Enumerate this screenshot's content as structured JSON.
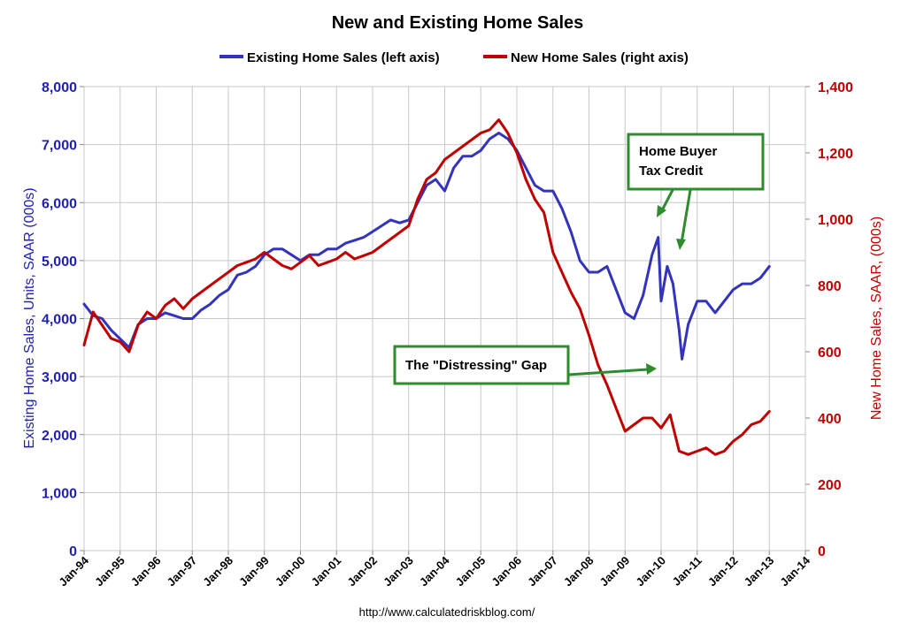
{
  "chart_data": {
    "type": "line",
    "title": "New and Existing Home Sales",
    "ylabel_left": "Existing Home Sales, Units, SAAR (000s)",
    "ylabel_right": "New Home Sales, SAAR, (000s)",
    "source": "http://www.calculatedriskblog.com/",
    "x_tick_labels": [
      "Jan-94",
      "Jan-95",
      "Jan-96",
      "Jan-97",
      "Jan-98",
      "Jan-99",
      "Jan-00",
      "Jan-01",
      "Jan-02",
      "Jan-03",
      "Jan-04",
      "Jan-05",
      "Jan-06",
      "Jan-07",
      "Jan-08",
      "Jan-09",
      "Jan-10",
      "Jan-11",
      "Jan-12",
      "Jan-13",
      "Jan-14"
    ],
    "x_range": [
      1994.0,
      2014.0
    ],
    "ylim_left": [
      0,
      8000
    ],
    "ylim_right": [
      0,
      1400
    ],
    "y_ticks_left": [
      "0",
      "1,000",
      "2,000",
      "3,000",
      "4,000",
      "5,000",
      "6,000",
      "7,000",
      "8,000"
    ],
    "y_ticks_right": [
      "0",
      "200",
      "400",
      "600",
      "800",
      "1,000",
      "1,200",
      "1,400"
    ],
    "grid": true,
    "legend_position": "top",
    "series": [
      {
        "name": "Existing Home Sales (left axis)",
        "axis": "left",
        "color": "#3333bb",
        "x": [
          1994.0,
          1994.25,
          1994.5,
          1994.75,
          1995.0,
          1995.25,
          1995.5,
          1995.75,
          1996.0,
          1996.25,
          1996.5,
          1996.75,
          1997.0,
          1997.25,
          1997.5,
          1997.75,
          1998.0,
          1998.25,
          1998.5,
          1998.75,
          1999.0,
          1999.25,
          1999.5,
          1999.75,
          2000.0,
          2000.25,
          2000.5,
          2000.75,
          2001.0,
          2001.25,
          2001.5,
          2001.75,
          2002.0,
          2002.25,
          2002.5,
          2002.75,
          2003.0,
          2003.25,
          2003.5,
          2003.75,
          2004.0,
          2004.25,
          2004.5,
          2004.75,
          2005.0,
          2005.25,
          2005.5,
          2005.75,
          2006.0,
          2006.25,
          2006.5,
          2006.75,
          2007.0,
          2007.25,
          2007.5,
          2007.75,
          2008.0,
          2008.25,
          2008.5,
          2008.75,
          2009.0,
          2009.25,
          2009.5,
          2009.75,
          2009.92,
          2010.0,
          2010.17,
          2010.33,
          2010.5,
          2010.58,
          2010.75,
          2011.0,
          2011.25,
          2011.5,
          2011.75,
          2012.0,
          2012.25,
          2012.5,
          2012.75,
          2013.0
        ],
        "values": [
          4250,
          4050,
          4000,
          3800,
          3650,
          3500,
          3900,
          4000,
          4000,
          4100,
          4050,
          4000,
          4000,
          4150,
          4250,
          4400,
          4500,
          4750,
          4800,
          4900,
          5100,
          5200,
          5200,
          5100,
          5000,
          5100,
          5100,
          5200,
          5200,
          5300,
          5350,
          5400,
          5500,
          5600,
          5700,
          5650,
          5700,
          6000,
          6300,
          6400,
          6200,
          6600,
          6800,
          6800,
          6900,
          7100,
          7200,
          7100,
          6900,
          6600,
          6300,
          6200,
          6200,
          5900,
          5500,
          5000,
          4800,
          4800,
          4900,
          4500,
          4100,
          4000,
          4400,
          5100,
          5400,
          4300,
          4900,
          4600,
          3800,
          3300,
          3900,
          4300,
          4300,
          4100,
          4300,
          4500,
          4600,
          4600,
          4700,
          4900
        ]
      },
      {
        "name": "New Home Sales (right axis)",
        "axis": "right",
        "color": "#c00000",
        "x": [
          1994.0,
          1994.25,
          1994.5,
          1994.75,
          1995.0,
          1995.25,
          1995.5,
          1995.75,
          1996.0,
          1996.25,
          1996.5,
          1996.75,
          1997.0,
          1997.25,
          1997.5,
          1997.75,
          1998.0,
          1998.25,
          1998.5,
          1998.75,
          1999.0,
          1999.25,
          1999.5,
          1999.75,
          2000.0,
          2000.25,
          2000.5,
          2000.75,
          2001.0,
          2001.25,
          2001.5,
          2001.75,
          2002.0,
          2002.25,
          2002.5,
          2002.75,
          2003.0,
          2003.25,
          2003.5,
          2003.75,
          2004.0,
          2004.25,
          2004.5,
          2004.75,
          2005.0,
          2005.25,
          2005.5,
          2005.75,
          2006.0,
          2006.25,
          2006.5,
          2006.75,
          2007.0,
          2007.25,
          2007.5,
          2007.75,
          2008.0,
          2008.25,
          2008.5,
          2008.75,
          2009.0,
          2009.25,
          2009.5,
          2009.75,
          2010.0,
          2010.25,
          2010.5,
          2010.75,
          2011.0,
          2011.25,
          2011.5,
          2011.75,
          2012.0,
          2012.25,
          2012.5,
          2012.75,
          2013.0
        ],
        "values": [
          620,
          720,
          680,
          640,
          630,
          600,
          680,
          720,
          700,
          740,
          760,
          730,
          760,
          780,
          800,
          820,
          840,
          860,
          870,
          880,
          900,
          880,
          860,
          850,
          870,
          890,
          860,
          870,
          880,
          900,
          880,
          890,
          900,
          920,
          940,
          960,
          980,
          1060,
          1120,
          1140,
          1180,
          1200,
          1220,
          1240,
          1260,
          1270,
          1300,
          1260,
          1200,
          1120,
          1060,
          1020,
          900,
          840,
          780,
          730,
          650,
          560,
          500,
          430,
          360,
          380,
          400,
          400,
          370,
          410,
          300,
          290,
          300,
          310,
          290,
          300,
          330,
          350,
          380,
          390,
          420
        ]
      }
    ],
    "annotations": [
      {
        "text_lines": [
          "Home Buyer",
          "Tax Credit"
        ]
      },
      {
        "text_lines": [
          "The \"Distressing\" Gap"
        ]
      }
    ]
  }
}
